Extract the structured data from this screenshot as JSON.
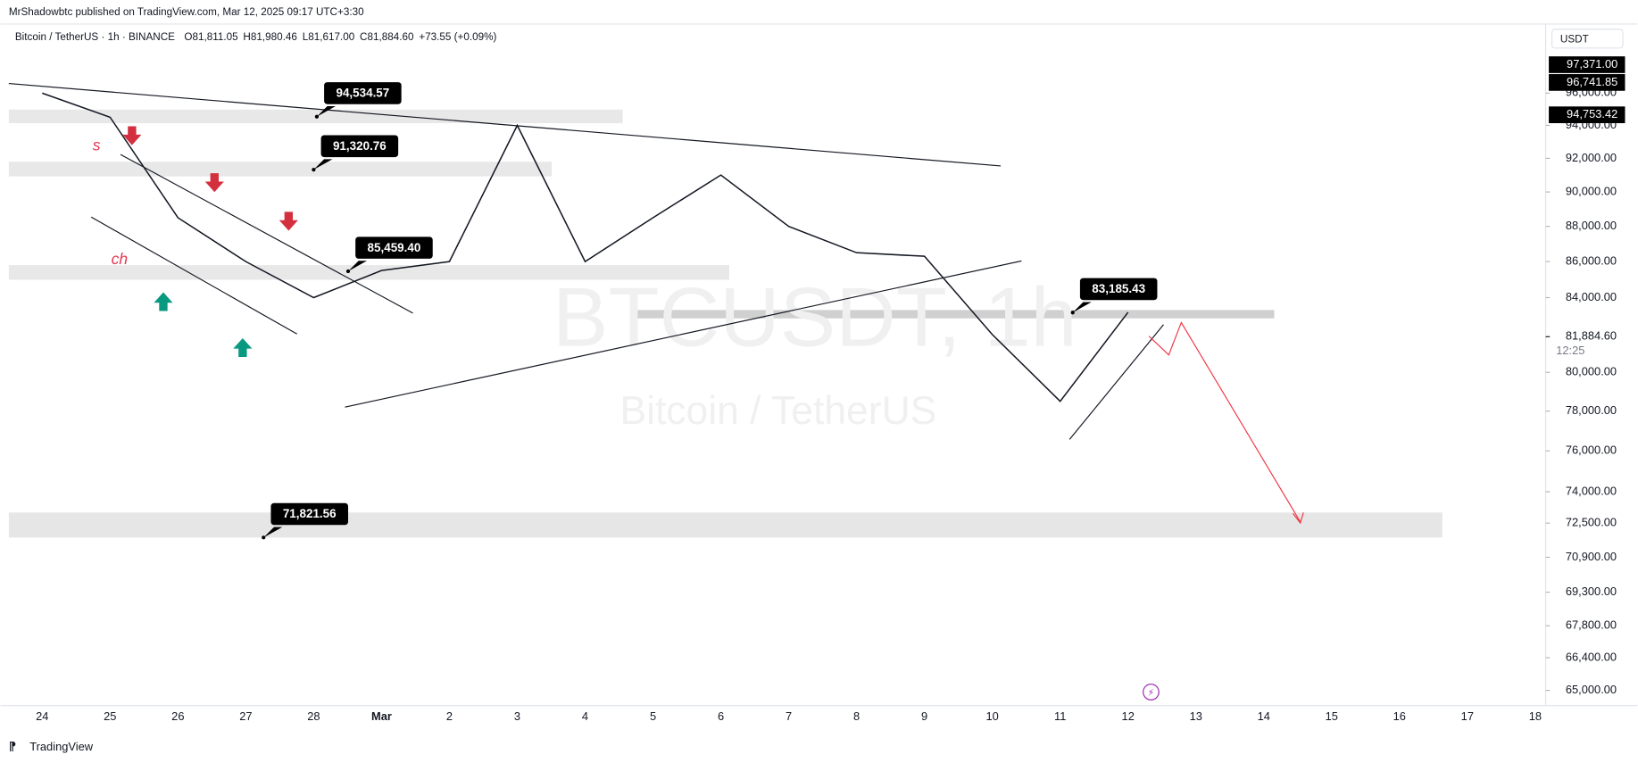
{
  "chart_data": {
    "type": "line",
    "header": "MrShadowbtc published on TradingView.com, Mar 12, 2025 09:17 UTC+3:30",
    "symbol": "Bitcoin / TetherUS · 1h · BINANCE",
    "ohlc": [
      "O81,811.05",
      "H81,980.46",
      "L81,617.00",
      "C81,884.60",
      "+73.55 (+0.09%)"
    ],
    "watermark": "BTCUSDT, 1h",
    "watermark_sub": "Bitcoin / TetherUS",
    "currency": "USDT",
    "timer": "12:25",
    "annotations": [
      "s",
      "ch"
    ],
    "footer": "TradingView",
    "log_scale": true,
    "grid": false,
    "categories": [
      "24",
      "25",
      "26",
      "27",
      "28",
      "Mar",
      "2",
      "3",
      "4",
      "5",
      "6",
      "7",
      "8",
      "9",
      "10",
      "11",
      "12",
      "13",
      "14",
      "15",
      "16",
      "17",
      "18"
    ],
    "series": [
      {
        "name": "BTCUSDT",
        "color": "#131722",
        "values": [
          96000,
          94500,
          88500,
          86000,
          84000,
          85500,
          86000,
          94000,
          86000,
          88500,
          91000,
          88000,
          86500,
          86300,
          82000,
          78500,
          83200,
          null,
          null,
          null,
          null,
          null,
          null
        ]
      }
    ],
    "ylim": [
      64400,
      100500
    ],
    "yticks": [
      {
        "value": 65000,
        "label": "65,000.00"
      },
      {
        "value": 66400,
        "label": "66,400.00"
      },
      {
        "value": 67800,
        "label": "67,800.00"
      },
      {
        "value": 69300,
        "label": "69,300.00"
      },
      {
        "value": 70900,
        "label": "70,900.00"
      },
      {
        "value": 72500,
        "label": "72,500.00"
      },
      {
        "value": 74000,
        "label": "74,000.00"
      },
      {
        "value": 76000,
        "label": "76,000.00"
      },
      {
        "value": 78000,
        "label": "78,000.00"
      },
      {
        "value": 80000,
        "label": "80,000.00"
      },
      {
        "value": 84000,
        "label": "84,000.00"
      },
      {
        "value": 86000,
        "label": "86,000.00"
      },
      {
        "value": 88000,
        "label": "88,000.00"
      },
      {
        "value": 90000,
        "label": "90,000.00"
      },
      {
        "value": 92000,
        "label": "92,000.00"
      },
      {
        "value": 94000,
        "label": "94,000.00"
      },
      {
        "value": 96000,
        "label": "96,000.00"
      }
    ],
    "price_labels": [
      {
        "value": 97371,
        "label": "97,371.00"
      },
      {
        "value": 96741.85,
        "label": "96,741.85"
      },
      {
        "value": 94753.42,
        "label": "94,753.42"
      }
    ],
    "last_price": {
      "value": 81884.6,
      "label": "81,884.60"
    },
    "levels": [
      {
        "value": 94534.57,
        "label": "94,534.57"
      },
      {
        "value": 91320.76,
        "label": "91,320.76"
      },
      {
        "value": 85459.4,
        "label": "85,459.40"
      },
      {
        "value": 83185.43,
        "label": "83,185.43"
      },
      {
        "value": 71821.56,
        "label": "71,821.56"
      }
    ]
  }
}
